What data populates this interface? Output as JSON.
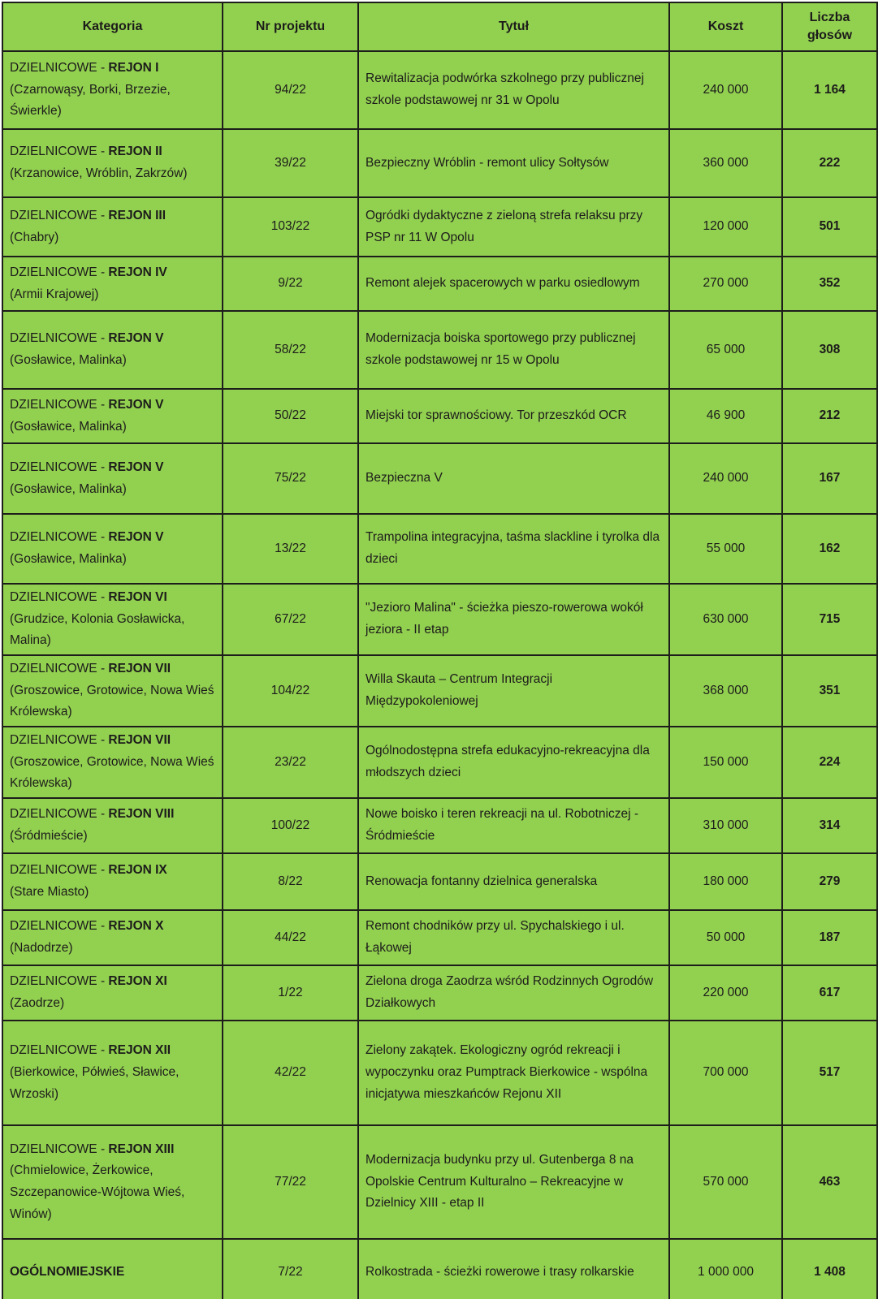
{
  "colors": {
    "bg": "#92d050",
    "border": "#1d1d1b",
    "text": "#1c1c1a"
  },
  "table": {
    "headers": [
      "Kategoria",
      "Nr projektu",
      "Tytuł",
      "Koszt",
      "Liczba głosów"
    ],
    "rows": [
      {
        "label": "DZIELNICOWE - ",
        "region": "REJON I",
        "districts": "(Czarnowąsy, Borki, Brzezie, Świerkle)",
        "nr": "94/22",
        "title": "Rewitalizacja podwórka szkolnego przy publicznej szkole podstawowej nr 31 w Opolu",
        "cost": "240 000",
        "votes": "1 164"
      },
      {
        "label": "DZIELNICOWE - ",
        "region": "REJON II",
        "districts": "(Krzanowice, Wróblin, Zakrzów)",
        "nr": "39/22",
        "title": "Bezpieczny Wróblin - remont ulicy Sołtysów",
        "cost": "360 000",
        "votes": "222"
      },
      {
        "label": "DZIELNICOWE - ",
        "region": "REJON III",
        "districts": "(Chabry)",
        "nr": "103/22",
        "title": "Ogródki dydaktyczne z zieloną strefa relaksu przy PSP nr 11 W Opolu",
        "cost": "120 000",
        "votes": "501"
      },
      {
        "label": "DZIELNICOWE - ",
        "region": "REJON IV",
        "districts": "(Armii Krajowej)",
        "nr": "9/22",
        "title": "Remont alejek spacerowych w parku osiedlowym",
        "cost": "270 000",
        "votes": "352"
      },
      {
        "label": "DZIELNICOWE - ",
        "region": "REJON V",
        "districts": "(Gosławice, Malinka)",
        "nr": "58/22",
        "title": "Modernizacja boiska sportowego przy publicznej szkole podstawowej nr 15 w Opolu",
        "cost": "65 000",
        "votes": "308"
      },
      {
        "label": "DZIELNICOWE - ",
        "region": "REJON V",
        "districts": "(Gosławice, Malinka)",
        "nr": "50/22",
        "title": "Miejski tor sprawnościowy. Tor przeszkód OCR",
        "cost": "46 900",
        "votes": "212"
      },
      {
        "label": "DZIELNICOWE - ",
        "region": "REJON V",
        "districts": "(Gosławice, Malinka)",
        "nr": "75/22",
        "title": "Bezpieczna V",
        "cost": "240 000",
        "votes": "167"
      },
      {
        "label": "DZIELNICOWE - ",
        "region": "REJON V",
        "districts": "(Gosławice, Malinka)",
        "nr": "13/22",
        "title": "Trampolina integracyjna, taśma slackline i tyrolka dla dzieci",
        "cost": "55 000",
        "votes": "162"
      },
      {
        "label": "DZIELNICOWE - ",
        "region": "REJON VI",
        "districts": "(Grudzice, Kolonia Gosławicka, Malina)",
        "nr": "67/22",
        "title": "\"Jezioro Malina\" - ścieżka pieszo-rowerowa wokół jeziora - II etap",
        "cost": "630 000",
        "votes": "715"
      },
      {
        "label": "DZIELNICOWE - ",
        "region": "REJON VII",
        "districts": "(Groszowice, Grotowice, Nowa Wieś Królewska)",
        "nr": "104/22",
        "title": "Willa Skauta – Centrum Integracji Międzypokoleniowej",
        "cost": "368 000",
        "votes": "351"
      },
      {
        "label": "DZIELNICOWE - ",
        "region": "REJON VII",
        "districts": "(Groszowice, Grotowice, Nowa Wieś Królewska)",
        "nr": "23/22",
        "title": "Ogólnodostępna strefa edukacyjno-rekreacyjna dla młodszych dzieci",
        "cost": "150 000",
        "votes": "224"
      },
      {
        "label": "DZIELNICOWE - ",
        "region": "REJON VIII",
        "districts": "(Śródmieście)",
        "nr": "100/22",
        "title": "Nowe boisko i teren rekreacji na ul. Robotniczej - Śródmieście",
        "cost": "310 000",
        "votes": "314"
      },
      {
        "label": "DZIELNICOWE - ",
        "region": "REJON IX",
        "districts": "(Stare Miasto)",
        "nr": "8/22",
        "title": "Renowacja fontanny dzielnica generalska",
        "cost": "180 000",
        "votes": "279"
      },
      {
        "label": "DZIELNICOWE - ",
        "region": "REJON X",
        "districts": "(Nadodrze)",
        "nr": "44/22",
        "title": "Remont chodników przy ul. Spychalskiego i ul. Łąkowej",
        "cost": "50 000",
        "votes": "187"
      },
      {
        "label": "DZIELNICOWE - ",
        "region": "REJON XI",
        "districts": "(Zaodrze)",
        "nr": "1/22",
        "title": "Zielona droga Zaodrza wśród Rodzinnych Ogrodów Działkowych",
        "cost": "220 000",
        "votes": "617"
      },
      {
        "label": "DZIELNICOWE - ",
        "region": "REJON XII",
        "districts": "(Bierkowice, Półwieś, Sławice, Wrzoski)",
        "nr": "42/22",
        "title": "Zielony zakątek. Ekologiczny ogród rekreacji i wypoczynku oraz Pumptrack Bierkowice - wspólna inicjatywa mieszkańców Rejonu XII",
        "cost": "700 000",
        "votes": "517"
      },
      {
        "label": "DZIELNICOWE - ",
        "region": "REJON XIII",
        "districts": "(Chmielowice, Żerkowice, Szczepanowice-Wójtowa Wieś, Winów)",
        "nr": "77/22",
        "title": "Modernizacja budynku przy ul. Gutenberga 8 na Opolskie Centrum Kulturalno – Rekreacyjne w Dzielnicy XIII - etap II",
        "cost": "570 000",
        "votes": "463"
      },
      {
        "label": "",
        "region": "OGÓLNOMIEJSKIE",
        "districts": "",
        "nr": "7/22",
        "title": "Rolkostrada - ścieżki rowerowe i trasy rolkarskie",
        "cost": "1 000 000",
        "votes": "1 408"
      }
    ]
  }
}
